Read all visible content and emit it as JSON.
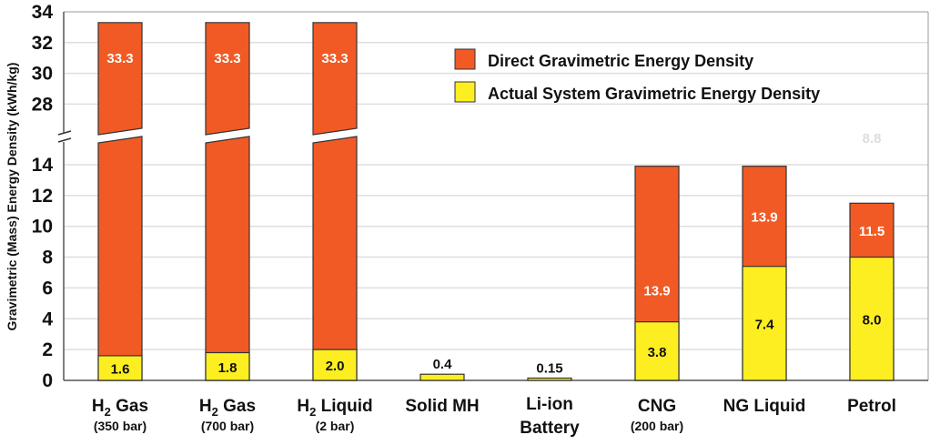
{
  "chart_data": {
    "type": "bar",
    "stacked": "overlay",
    "ylabel": "Gravimetric (Mass) Energy Density (kWh/kg)",
    "y_axis_break": [
      15.5,
      26
    ],
    "ylim": [
      0,
      34
    ],
    "yticks_lower": [
      0,
      2,
      4,
      6,
      8,
      10,
      12,
      14
    ],
    "yticks_upper": [
      28,
      30,
      32,
      34
    ],
    "grid": true,
    "legend_position": "top-right",
    "categories": [
      {
        "main": "H",
        "sub": "2",
        "rest": " Gas",
        "note": "(350 bar)"
      },
      {
        "main": "H",
        "sub": "2",
        "rest": " Gas",
        "note": "(700 bar)"
      },
      {
        "main": "H",
        "sub": "2",
        "rest": " Liquid",
        "note": "(2 bar)"
      },
      {
        "main": "Solid MH",
        "sub": "",
        "rest": "",
        "note": ""
      },
      {
        "main": "Li-ion",
        "sub": "",
        "rest": "",
        "note": "Battery"
      },
      {
        "main": "CNG",
        "sub": "",
        "rest": "",
        "note": "(200 bar)"
      },
      {
        "main": "NG Liquid",
        "sub": "",
        "rest": "",
        "note": ""
      },
      {
        "main": "Petrol",
        "sub": "",
        "rest": "",
        "note": ""
      }
    ],
    "series": [
      {
        "name": "Direct Gravimetric Energy Density",
        "color": "#f15a24",
        "values": [
          33.3,
          33.3,
          33.3,
          null,
          null,
          13.9,
          13.9,
          11.5
        ],
        "labels": [
          "33.3",
          "33.3",
          "33.3",
          "",
          "",
          "13.9",
          "13.9",
          "11.5"
        ]
      },
      {
        "name": "Actual System Gravimetric Energy Density",
        "color": "#fcee21",
        "values": [
          1.6,
          1.8,
          2.0,
          0.4,
          0.15,
          3.8,
          7.4,
          8.0
        ],
        "labels": [
          "1.6",
          "1.8",
          "2.0",
          "0.4",
          "0.15",
          "3.8",
          "7.4",
          "8.0"
        ]
      }
    ],
    "annotations": [
      {
        "text": "8.8",
        "category": "Petrol",
        "color": "#dddddd"
      }
    ]
  }
}
